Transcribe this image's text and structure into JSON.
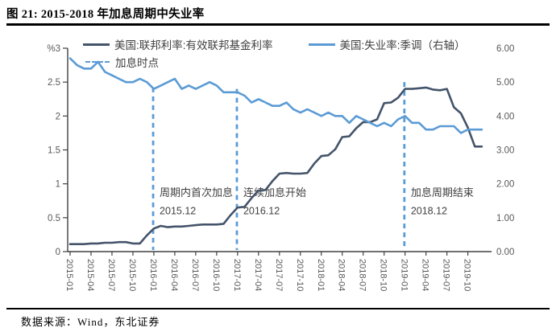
{
  "title": "图 21: 2015-2018 年加息周期中失业率",
  "footer": {
    "source_label": "数据来源：Wind，东北证券"
  },
  "colors": {
    "fed_line": "#44546A",
    "unemployment_line": "#5B9BD5",
    "hike_marker": "#5B9BD5",
    "axis": "#404040",
    "tick_text": "#595959",
    "annotation_text": "#404040",
    "title_text": "#000000"
  },
  "chart_data": {
    "type": "line",
    "x_start_month": "2015-01",
    "x_frequency": "monthly",
    "x_tick_labels": [
      "2015-01",
      "2015-04",
      "2015-07",
      "2015-10",
      "2016-01",
      "2016-04",
      "2016-07",
      "2016-10",
      "2017-01",
      "2017-04",
      "2017-07",
      "2017-10",
      "2018-01",
      "2018-04",
      "2018-07",
      "2018-10",
      "2019-01",
      "2019-04",
      "2019-07",
      "2019-10"
    ],
    "y_left": {
      "unit": "%",
      "min": 0,
      "max": 3,
      "tick_labels": [
        "0",
        "0.5",
        "1",
        "1.5",
        "2",
        "2.5",
        "3"
      ]
    },
    "y_right": {
      "min": 0,
      "max": 6,
      "tick_labels": [
        "0.00",
        "1.00",
        "2.00",
        "3.00",
        "4.00",
        "5.00",
        "6.00"
      ]
    },
    "grid": false,
    "legend_position": "top-inside",
    "legend": {
      "hike_points_label": "加息时点"
    },
    "series": [
      {
        "name": "美国:联邦利率:有效联邦基金利率",
        "axis": "left",
        "color": "#44546A",
        "values": [
          0.11,
          0.11,
          0.11,
          0.12,
          0.12,
          0.13,
          0.13,
          0.14,
          0.14,
          0.12,
          0.12,
          0.24,
          0.34,
          0.38,
          0.36,
          0.37,
          0.37,
          0.38,
          0.39,
          0.4,
          0.4,
          0.4,
          0.41,
          0.54,
          0.65,
          0.66,
          0.79,
          0.9,
          0.91,
          1.04,
          1.15,
          1.16,
          1.15,
          1.15,
          1.16,
          1.3,
          1.41,
          1.42,
          1.51,
          1.69,
          1.7,
          1.82,
          1.91,
          1.91,
          1.95,
          2.19,
          2.2,
          2.27,
          2.4,
          2.4,
          2.41,
          2.42,
          2.39,
          2.38,
          2.4,
          2.13,
          2.04,
          1.83,
          1.55,
          1.55
        ]
      },
      {
        "name": "美国:失业率:季调（右轴）",
        "axis": "right",
        "color": "#5B9BD5",
        "values": [
          5.7,
          5.5,
          5.4,
          5.4,
          5.6,
          5.3,
          5.2,
          5.1,
          5.0,
          5.0,
          5.1,
          5.0,
          4.8,
          4.9,
          5.0,
          5.1,
          4.8,
          4.9,
          4.8,
          4.9,
          5.0,
          4.9,
          4.7,
          4.7,
          4.7,
          4.6,
          4.4,
          4.5,
          4.4,
          4.3,
          4.3,
          4.4,
          4.2,
          4.1,
          4.2,
          4.1,
          4.0,
          4.1,
          4.0,
          4.0,
          3.8,
          4.0,
          3.9,
          3.8,
          3.7,
          3.8,
          3.7,
          3.9,
          4.0,
          3.8,
          3.8,
          3.6,
          3.6,
          3.7,
          3.7,
          3.7,
          3.5,
          3.6,
          3.6,
          3.6
        ]
      }
    ],
    "hike_vlines": [
      {
        "month": "2015-12",
        "label": "周期内首次加息",
        "date_label": "2015.12"
      },
      {
        "month": "2016-12",
        "label": "连续加息开始",
        "date_label": "2016.12"
      },
      {
        "month": "2018-12",
        "label": "加息周期结束",
        "date_label": "2018.12"
      }
    ]
  }
}
